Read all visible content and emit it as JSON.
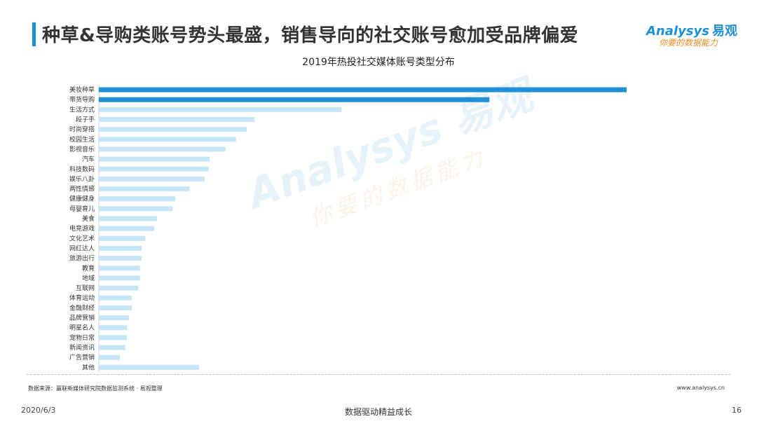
{
  "header": {
    "title": "种草&导购类账号势头最盛，销售导向的社交账号愈加受品牌偏爱"
  },
  "logo": {
    "brand_en": "Analysys",
    "brand_cn": "易观",
    "tagline_first": "你",
    "tagline_rest": "要的数据能力"
  },
  "watermark": {
    "main": "Analysys 易观",
    "sub": "你要的数据能力"
  },
  "colors": {
    "accent": "#1f8fd6",
    "highlight_bar": "#1f8fd6",
    "normal_bar": "#c6e6f7",
    "tagline": "#f08a24"
  },
  "chart_data": {
    "type": "bar",
    "orientation": "horizontal",
    "title": "2019年热投社交媒体账号类型分布",
    "categories": [
      "美妆种草",
      "带货导购",
      "生活方式",
      "段子手",
      "时尚穿搭",
      "校园生活",
      "影视音乐",
      "汽车",
      "科技数码",
      "娱乐八卦",
      "两性情感",
      "健康健身",
      "母婴育儿",
      "美食",
      "电竞游戏",
      "文化艺术",
      "网红达人",
      "旅游出行",
      "教育",
      "地域",
      "互联网",
      "体育运动",
      "金融财经",
      "品牌营销",
      "明星名人",
      "宠物日常",
      "新闻资讯",
      "广告营销",
      "其他"
    ],
    "values": [
      100,
      74,
      46,
      29.5,
      28,
      26,
      24,
      21,
      20.8,
      20,
      17.2,
      14.5,
      14,
      11,
      10.5,
      8.8,
      8.1,
      8.1,
      7.8,
      7.8,
      7.5,
      6.3,
      6.3,
      5.7,
      5.4,
      5.3,
      5,
      4,
      19
    ],
    "highlight": [
      true,
      true,
      false,
      false,
      false,
      false,
      false,
      false,
      false,
      false,
      false,
      false,
      false,
      false,
      false,
      false,
      false,
      false,
      false,
      false,
      false,
      false,
      false,
      false,
      false,
      false,
      false,
      false,
      false
    ],
    "xlim": [
      0,
      100
    ],
    "grid": false,
    "legend": "none"
  },
  "footer": {
    "source": "数据来源：赢联新媒体研究院数据监测系统 · 易观整理",
    "website": "www.analysys.cn",
    "date": "2020/6/3",
    "slogan": "数据驱动精益成长",
    "page": "16"
  }
}
